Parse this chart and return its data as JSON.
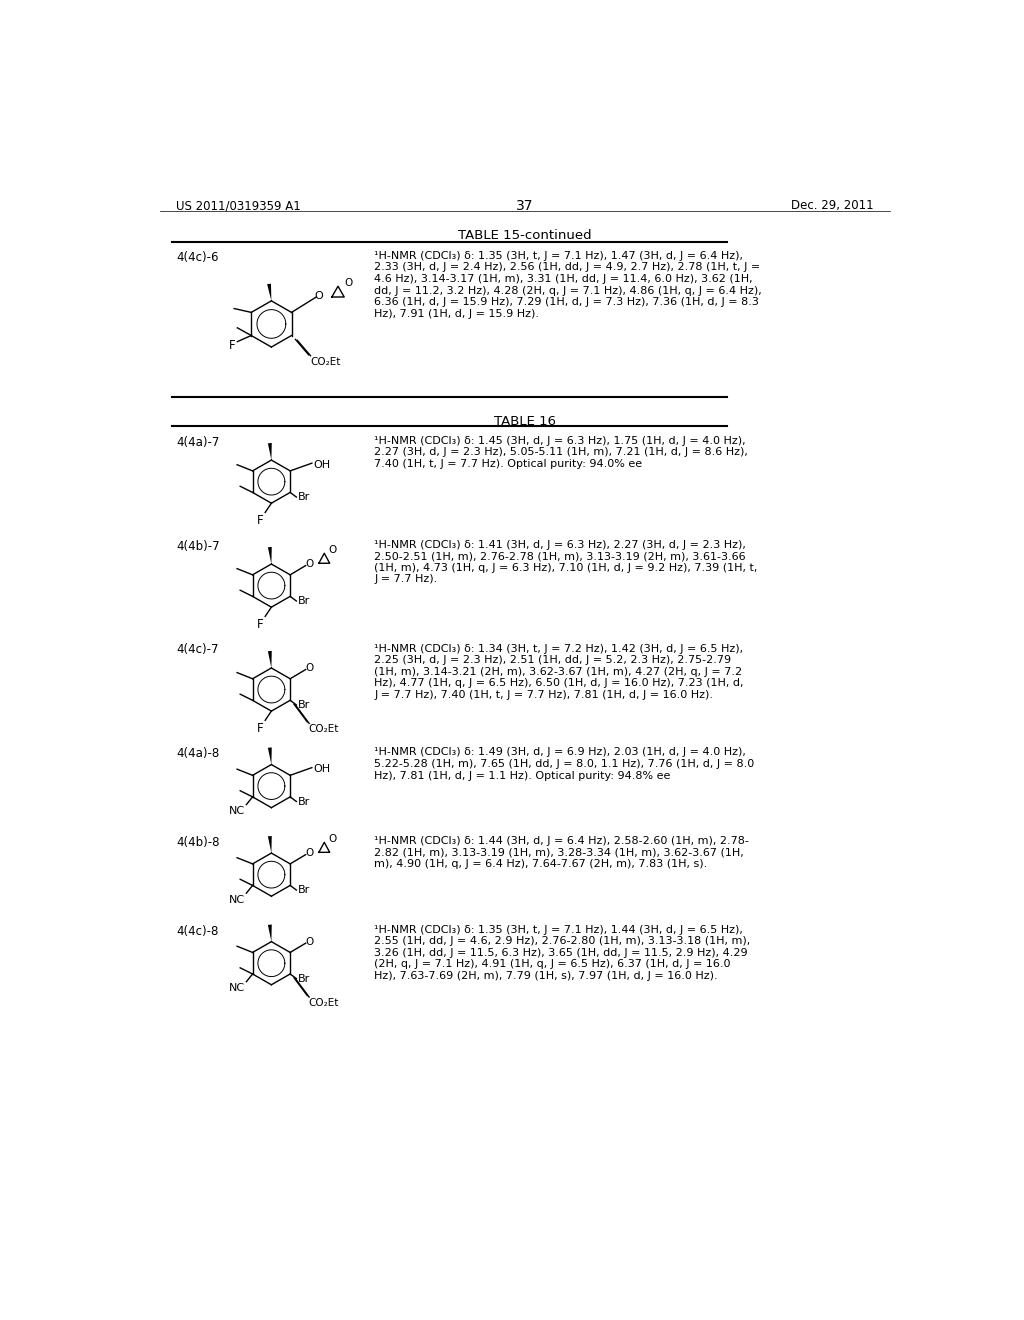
{
  "page_header_left": "US 2011/0319359 A1",
  "page_header_right": "Dec. 29, 2011",
  "page_number": "37",
  "background_color": "#ffffff",
  "table15_title": "TABLE 15-continued",
  "table16_title": "TABLE 16",
  "rows": [
    {
      "id": "4(4c)-6",
      "nmr": "¹H-NMR (CDCl₃) δ: 1.35 (3H, t, J = 7.1 Hz), 1.47 (3H, d, J = 6.4 Hz),\n2.33 (3H, d, J = 2.4 Hz), 2.56 (1H, dd, J = 4.9, 2.7 Hz), 2.78 (1H, t, J =\n4.6 Hz), 3.14-3.17 (1H, m), 3.31 (1H, dd, J = 11.4, 6.0 Hz), 3.62 (1H,\ndd, J = 11.2, 3.2 Hz), 4.28 (2H, q, J = 7.1 Hz), 4.86 (1H, q, J = 6.4 Hz),\n6.36 (1H, d, J = 15.9 Hz), 7.29 (1H, d, J = 7.3 Hz), 7.36 (1H, d, J = 8.3\nHz), 7.91 (1H, d, J = 15.9 Hz).",
      "table": 15
    },
    {
      "id": "4(4a)-7",
      "nmr": "¹H-NMR (CDCl₃) δ: 1.45 (3H, d, J = 6.3 Hz), 1.75 (1H, d, J = 4.0 Hz),\n2.27 (3H, d, J = 2.3 Hz), 5.05-5.11 (1H, m), 7.21 (1H, d, J = 8.6 Hz),\n7.40 (1H, t, J = 7.7 Hz). Optical purity: 94.0% ee",
      "table": 16
    },
    {
      "id": "4(4b)-7",
      "nmr": "¹H-NMR (CDCl₃) δ: 1.41 (3H, d, J = 6.3 Hz), 2.27 (3H, d, J = 2.3 Hz),\n2.50-2.51 (1H, m), 2.76-2.78 (1H, m), 3.13-3.19 (2H, m), 3.61-3.66\n(1H, m), 4.73 (1H, q, J = 6.3 Hz), 7.10 (1H, d, J = 9.2 Hz), 7.39 (1H, t,\nJ = 7.7 Hz).",
      "table": 16
    },
    {
      "id": "4(4c)-7",
      "nmr": "¹H-NMR (CDCl₃) δ: 1.34 (3H, t, J = 7.2 Hz), 1.42 (3H, d, J = 6.5 Hz),\n2.25 (3H, d, J = 2.3 Hz), 2.51 (1H, dd, J = 5.2, 2.3 Hz), 2.75-2.79\n(1H, m), 3.14-3.21 (2H, m), 3.62-3.67 (1H, m), 4.27 (2H, q, J = 7.2\nHz), 4.77 (1H, q, J = 6.5 Hz), 6.50 (1H, d, J = 16.0 Hz), 7.23 (1H, d,\nJ = 7.7 Hz), 7.40 (1H, t, J = 7.7 Hz), 7.81 (1H, d, J = 16.0 Hz).",
      "table": 16
    },
    {
      "id": "4(4a)-8",
      "nmr": "¹H-NMR (CDCl₃) δ: 1.49 (3H, d, J = 6.9 Hz), 2.03 (1H, d, J = 4.0 Hz),\n5.22-5.28 (1H, m), 7.65 (1H, dd, J = 8.0, 1.1 Hz), 7.76 (1H, d, J = 8.0\nHz), 7.81 (1H, d, J = 1.1 Hz). Optical purity: 94.8% ee",
      "table": 16
    },
    {
      "id": "4(4b)-8",
      "nmr": "¹H-NMR (CDCl₃) δ: 1.44 (3H, d, J = 6.4 Hz), 2.58-2.60 (1H, m), 2.78-\n2.82 (1H, m), 3.13-3.19 (1H, m), 3.28-3.34 (1H, m), 3.62-3.67 (1H,\nm), 4.90 (1H, q, J = 6.4 Hz), 7.64-7.67 (2H, m), 7.83 (1H, s).",
      "table": 16
    },
    {
      "id": "4(4c)-8",
      "nmr": "¹H-NMR (CDCl₃) δ: 1.35 (3H, t, J = 7.1 Hz), 1.44 (3H, d, J = 6.5 Hz),\n2.55 (1H, dd, J = 4.6, 2.9 Hz), 2.76-2.80 (1H, m), 3.13-3.18 (1H, m),\n3.26 (1H, dd, J = 11.5, 6.3 Hz), 3.65 (1H, dd, J = 11.5, 2.9 Hz), 4.29\n(2H, q, J = 7.1 Hz), 4.91 (1H, q, J = 6.5 Hz), 6.37 (1H, d, J = 16.0\nHz), 7.63-7.69 (2H, m), 7.79 (1H, s), 7.97 (1H, d, J = 16.0 Hz).",
      "table": 16
    }
  ]
}
